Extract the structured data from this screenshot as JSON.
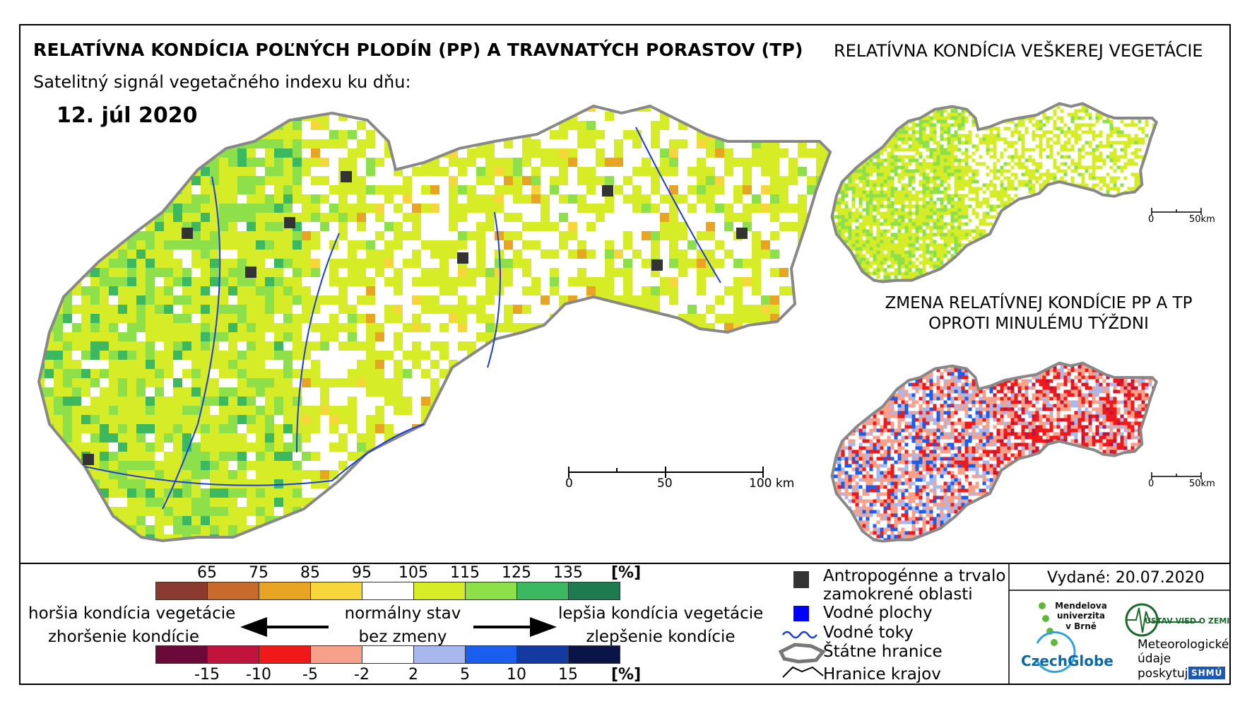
{
  "header": {
    "title": "RELATÍVNA KONDÍCIA POĽNÝCH PLODÍN (PP) A TRAVNATÝCH PORASTOV (TP)",
    "subtitle": "Satelitný signál vegetačného indexu ku dňu:",
    "date": "12. júl 2020"
  },
  "side_maps": {
    "vegetation_title": "RELATÍVNA KONDÍCIA VEŠKEREJ VEGETÁCIE",
    "change_title_line1": "ZMENA RELATÍVNEJ KONDÍCIE PP A TP",
    "change_title_line2": "OPROTI MINULÉMU TÝŽDNI",
    "scale_zero": "0",
    "scale_end": "50km"
  },
  "main_map": {
    "scale_labels": [
      "0",
      "50",
      "100 km"
    ]
  },
  "legend": {
    "condition_ticks": [
      "65",
      "75",
      "85",
      "95",
      "105",
      "115",
      "125",
      "135"
    ],
    "condition_colors": [
      "#8b3a2f",
      "#c86a2c",
      "#e8a524",
      "#f7d63c",
      "#ffffff",
      "#d6ec26",
      "#8ee04a",
      "#3cb860",
      "#1e7a4f"
    ],
    "change_ticks": [
      "-15",
      "-10",
      "-5",
      "-2",
      "2",
      "5",
      "10",
      "15"
    ],
    "change_colors": [
      "#6b0a3a",
      "#c0143c",
      "#f01818",
      "#f7a08a",
      "#ffffff",
      "#a8b8ee",
      "#1a5ef0",
      "#123aa0",
      "#0a1446"
    ],
    "unit": "[%]",
    "worse_line1": "horšia kondícia vegetácie",
    "worse_line2": "zhoršenie kondície",
    "normal_line1": "normálny stav",
    "normal_line2": "bez zmeny",
    "better_line1": "lepšia kondícia vegetácie",
    "better_line2": "zlepšenie kondície"
  },
  "symbols": {
    "anthropogenic_line1": "Antropogénne a trvalo",
    "anthropogenic_line2": "zamokrené oblasti",
    "water_bodies": "Vodné plochy",
    "water_courses": "Vodné toky",
    "state_border": "Štátne hranice",
    "region_border": "Hranice krajov",
    "anthropogenic_color": "#333333",
    "water_body_color": "#0000ff",
    "water_course_color": "#1c3cd8"
  },
  "issued": {
    "label": "Vydané: 20.07.2020"
  },
  "logos": {
    "mendel_line1": "Mendelova",
    "mendel_line2": "univerzita",
    "mendel_line3": "v Brně",
    "czechglobe": "CzechGlobe",
    "uvz": "ÚSTAV VIED O ZEMI",
    "meteo_line1": "Meteorologické",
    "meteo_line2": "údaje",
    "meteo_line3": "poskytuje:",
    "shmu": "SHMÚ"
  }
}
